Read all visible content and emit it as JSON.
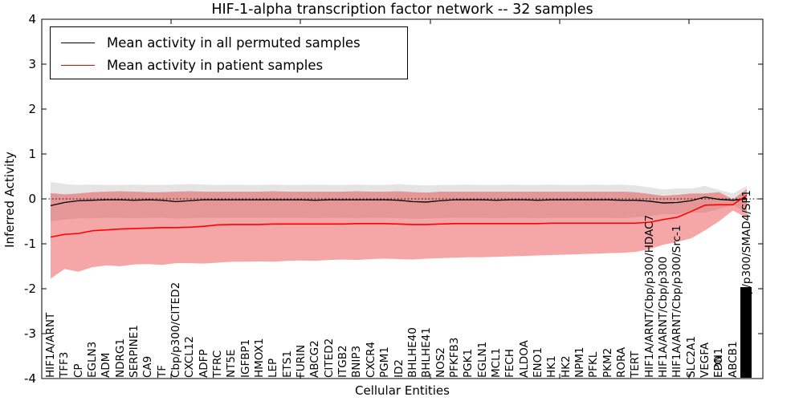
{
  "title": "HIF-1-alpha transcription factor network -- 32 samples",
  "legend": {
    "items": [
      {
        "label": "Mean activity in all permuted samples",
        "color": "#000000"
      },
      {
        "label": "Mean activity in patient samples",
        "color": "#ff0000"
      }
    ]
  },
  "chart_data": {
    "type": "line",
    "title": "HIF-1-alpha transcription factor network -- 32 samples",
    "xlabel": "Cellular Entities",
    "ylabel": "Inferred Activity",
    "ylim": [
      -4,
      4
    ],
    "yticks": [
      4,
      3,
      2,
      1,
      0,
      -1,
      -2,
      -3,
      -4
    ],
    "grid": false,
    "zero_line_dotted": true,
    "legend_position": "upper left",
    "categories": [
      "HIF1A/ARNT",
      "TFF3",
      "CP",
      "EGLN3",
      "ADM",
      "NDRG1",
      "SERPINE1",
      "CA9",
      "TF",
      "Cbp/p300/CITED2",
      "CXCL12",
      "ADFP",
      "TFRC",
      "NT5E",
      "IGFBP1",
      "HMOX1",
      "LEP",
      "ETS1",
      "FURIN",
      "ABCG2",
      "CITED2",
      "ITGB2",
      "BNIP3",
      "CXCR4",
      "PGM1",
      "ID2",
      "BHLHE40",
      "BHLHE41",
      "NOS2",
      "PFKFB3",
      "PGK1",
      "EGLN1",
      "MCL1",
      "FECH",
      "ALDOA",
      "ENO1",
      "HK1",
      "HK2",
      "NPM1",
      "PFKL",
      "PKM2",
      "RORA",
      "TERT",
      "HIF1A/ARNT/Cbp/p300/HDAC7",
      "HIF1A/ARNT/Cbp/p300",
      "HIF1A/ARNT/Cbp/p300/Src-1",
      "SLC2A1",
      "VEGFA",
      "EDN1",
      "ABCB1",
      "HIF1A/ARNT/Cbp/p300/SMAD4/SP1"
    ],
    "overlapping_labels": [
      {
        "index": 48,
        "label": "EPO"
      }
    ],
    "last_category_is_overlapping_cluster": true,
    "series": [
      {
        "name": "Mean activity in all permuted samples",
        "color": "#000000",
        "band_color": "#b8b8b8",
        "values": [
          -0.15,
          -0.08,
          -0.04,
          -0.03,
          -0.02,
          -0.02,
          -0.03,
          -0.02,
          -0.03,
          -0.06,
          -0.04,
          -0.02,
          -0.02,
          -0.02,
          -0.02,
          -0.02,
          -0.02,
          -0.02,
          -0.02,
          -0.03,
          -0.02,
          -0.02,
          -0.02,
          -0.02,
          -0.02,
          -0.03,
          -0.06,
          -0.07,
          -0.04,
          -0.02,
          -0.02,
          -0.02,
          -0.03,
          -0.02,
          -0.02,
          -0.03,
          -0.02,
          -0.02,
          -0.02,
          -0.02,
          -0.02,
          -0.03,
          -0.03,
          -0.05,
          -0.09,
          -0.08,
          -0.04,
          0.04,
          -0.01,
          -0.03,
          0.0
        ],
        "band_upper": [
          0.38,
          0.33,
          0.31,
          0.32,
          0.31,
          0.31,
          0.32,
          0.31,
          0.31,
          0.32,
          0.33,
          0.32,
          0.31,
          0.32,
          0.31,
          0.31,
          0.32,
          0.31,
          0.31,
          0.32,
          0.31,
          0.31,
          0.32,
          0.31,
          0.31,
          0.33,
          0.31,
          0.3,
          0.31,
          0.31,
          0.32,
          0.31,
          0.31,
          0.32,
          0.31,
          0.31,
          0.32,
          0.31,
          0.31,
          0.32,
          0.31,
          0.32,
          0.3,
          0.26,
          0.21,
          0.23,
          0.23,
          0.29,
          0.2,
          0.12,
          0.29
        ],
        "band_lower": [
          -0.5,
          -0.46,
          -0.43,
          -0.43,
          -0.42,
          -0.42,
          -0.43,
          -0.42,
          -0.42,
          -0.44,
          -0.43,
          -0.42,
          -0.42,
          -0.42,
          -0.42,
          -0.42,
          -0.42,
          -0.42,
          -0.42,
          -0.43,
          -0.42,
          -0.42,
          -0.43,
          -0.42,
          -0.42,
          -0.43,
          -0.44,
          -0.44,
          -0.43,
          -0.42,
          -0.42,
          -0.42,
          -0.43,
          -0.42,
          -0.42,
          -0.43,
          -0.42,
          -0.42,
          -0.42,
          -0.42,
          -0.42,
          -0.43,
          -0.41,
          -0.38,
          -0.34,
          -0.34,
          -0.3,
          -0.31,
          -0.22,
          -0.14,
          -0.3
        ]
      },
      {
        "name": "Mean activity in patient samples",
        "color": "#ff0000",
        "band_color": "#e82c2c",
        "values": [
          -0.85,
          -0.79,
          -0.77,
          -0.71,
          -0.69,
          -0.67,
          -0.66,
          -0.65,
          -0.64,
          -0.64,
          -0.63,
          -0.61,
          -0.58,
          -0.57,
          -0.57,
          -0.57,
          -0.56,
          -0.56,
          -0.56,
          -0.56,
          -0.56,
          -0.56,
          -0.55,
          -0.55,
          -0.55,
          -0.56,
          -0.57,
          -0.57,
          -0.56,
          -0.55,
          -0.55,
          -0.55,
          -0.55,
          -0.55,
          -0.55,
          -0.55,
          -0.54,
          -0.54,
          -0.54,
          -0.54,
          -0.54,
          -0.54,
          -0.54,
          -0.52,
          -0.46,
          -0.41,
          -0.28,
          -0.14,
          -0.13,
          -0.13,
          0.08
        ],
        "band_upper": [
          0.13,
          0.1,
          0.12,
          0.15,
          0.16,
          0.17,
          0.16,
          0.15,
          0.15,
          0.16,
          0.17,
          0.16,
          0.16,
          0.16,
          0.16,
          0.16,
          0.17,
          0.16,
          0.16,
          0.16,
          0.16,
          0.16,
          0.17,
          0.16,
          0.16,
          0.17,
          0.15,
          0.14,
          0.16,
          0.16,
          0.16,
          0.16,
          0.16,
          0.16,
          0.16,
          0.16,
          0.16,
          0.16,
          0.16,
          0.16,
          0.16,
          0.16,
          0.15,
          0.11,
          0.07,
          0.09,
          0.12,
          0.12,
          0.15,
          -0.01,
          0.22
        ],
        "band_lower": [
          -1.78,
          -1.56,
          -1.62,
          -1.52,
          -1.48,
          -1.5,
          -1.46,
          -1.45,
          -1.47,
          -1.43,
          -1.43,
          -1.44,
          -1.42,
          -1.4,
          -1.4,
          -1.39,
          -1.4,
          -1.38,
          -1.37,
          -1.38,
          -1.36,
          -1.35,
          -1.36,
          -1.34,
          -1.33,
          -1.34,
          -1.35,
          -1.33,
          -1.32,
          -1.31,
          -1.3,
          -1.3,
          -1.29,
          -1.28,
          -1.27,
          -1.26,
          -1.25,
          -1.24,
          -1.23,
          -1.22,
          -1.21,
          -1.2,
          -1.18,
          -1.12,
          -1.02,
          -0.96,
          -0.88,
          -0.7,
          -0.5,
          -0.26,
          -0.42
        ]
      }
    ]
  }
}
